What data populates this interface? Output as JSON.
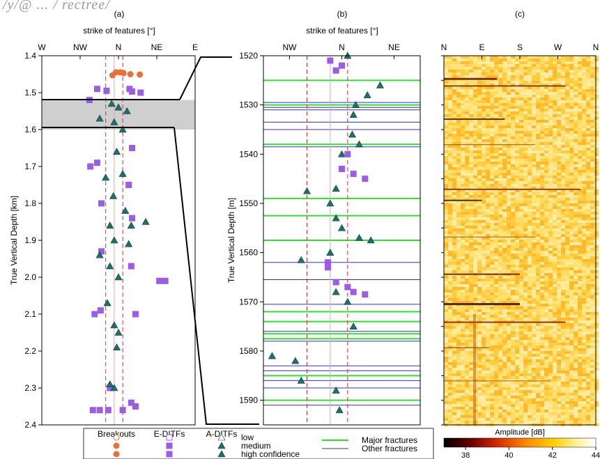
{
  "header_fragment": "/y/@ ... / rectree/",
  "chart_data": [
    {
      "panel_label": "(a)",
      "type": "scatter",
      "title": "strike of features [°]",
      "ylabel": "True Vertical Depth [km]",
      "xlim": [
        -90,
        90
      ],
      "ylim": [
        2.4,
        1.4
      ],
      "x_ticks": [
        "W",
        "NW",
        "N",
        "NE",
        "E"
      ],
      "x_tick_values": [
        -90,
        -45,
        0,
        45,
        90
      ],
      "y_ticks": [
        "1.4",
        "1.5",
        "1.6",
        "1.7",
        "1.8",
        "1.9",
        "2.0",
        "2.1",
        "2.2",
        "2.3",
        "2.4"
      ],
      "dashed_lines_x": [
        -15,
        5
      ],
      "solid_line_x": -5,
      "shaded_depth_km": [
        1.52,
        1.6
      ],
      "series": [
        {
          "name": "Breakouts",
          "marker": "circle",
          "color": "#e8713a",
          "points": [
            [
              -3,
              1.445
            ],
            [
              2,
              1.445
            ],
            [
              6,
              1.447
            ],
            [
              14,
              1.45
            ],
            [
              25,
              1.451
            ],
            [
              -7,
              1.453
            ]
          ]
        },
        {
          "name": "E-DITFs",
          "marker": "square",
          "color": "#9b5de5",
          "points": [
            [
              -25,
              1.49
            ],
            [
              -14,
              1.495
            ],
            [
              13,
              1.49
            ],
            [
              16,
              1.497
            ],
            [
              26,
              1.5
            ],
            [
              -34,
              1.52
            ],
            [
              -33,
              1.7
            ],
            [
              -25,
              1.69
            ],
            [
              16,
              1.65
            ],
            [
              12,
              1.75
            ],
            [
              -20,
              1.8
            ],
            [
              16,
              1.84
            ],
            [
              15,
              1.97
            ],
            [
              -20,
              1.93
            ],
            [
              55,
              2.01
            ],
            [
              48,
              2.01
            ],
            [
              -28,
              2.1
            ],
            [
              -21,
              2.09
            ],
            [
              20,
              2.1
            ],
            [
              -10,
              2.3
            ],
            [
              15,
              2.34
            ],
            [
              20,
              2.35
            ],
            [
              -12,
              2.36
            ],
            [
              5,
              2.36
            ],
            [
              -22,
              2.36
            ],
            [
              -30,
              2.36
            ]
          ]
        },
        {
          "name": "A-DITFs",
          "marker": "triangle",
          "color": "#1f6f6e",
          "points": [
            [
              -8,
              1.53
            ],
            [
              0,
              1.54
            ],
            [
              10,
              1.55
            ],
            [
              -22,
              1.57
            ],
            [
              -5,
              1.58
            ],
            [
              5,
              1.6
            ],
            [
              -2,
              1.66
            ],
            [
              -15,
              1.73
            ],
            [
              5,
              1.72
            ],
            [
              -6,
              1.78
            ],
            [
              8,
              1.82
            ],
            [
              -10,
              1.86
            ],
            [
              15,
              1.86
            ],
            [
              32,
              1.85
            ],
            [
              -5,
              1.9
            ],
            [
              12,
              1.91
            ],
            [
              -22,
              1.94
            ],
            [
              -10,
              1.97
            ],
            [
              0,
              2.0
            ],
            [
              -13,
              2.07
            ],
            [
              -5,
              2.13
            ],
            [
              0,
              2.15
            ],
            [
              -2,
              2.19
            ],
            [
              -10,
              2.29
            ],
            [
              -5,
              2.3
            ]
          ]
        }
      ],
      "legend": {
        "headers": [
          "Breakouts",
          "E-DITFs",
          "A-DITFs"
        ],
        "rows": [
          "low",
          "medium",
          "high confidence"
        ]
      }
    },
    {
      "panel_label": "(b)",
      "type": "scatter",
      "title": "strike of features [°]",
      "ylabel": "True Vertical Depth [m]",
      "xlim": [
        -67.5,
        67.5
      ],
      "ylim": [
        1595,
        1520
      ],
      "x_ticks": [
        "NW",
        "N",
        "NE"
      ],
      "x_tick_values": [
        -45,
        0,
        45
      ],
      "y_ticks": [
        "1520",
        "1530",
        "1540",
        "1550",
        "1560",
        "1570",
        "1580",
        "1590"
      ],
      "dashed_lines_x": [
        -30,
        5
      ],
      "solid_line_x": -10,
      "major_fractures_m": [
        1525,
        1530,
        1538,
        1549,
        1552.5,
        1557.5,
        1572,
        1574,
        1576.5,
        1577.5,
        1585,
        1590
      ],
      "other_fractures_m": [
        1529.5,
        1530.5,
        1531,
        1533.5,
        1535,
        1538.5,
        1562,
        1565.5,
        1570.5,
        1576,
        1578,
        1583,
        1584,
        1586,
        1587.5,
        1591
      ],
      "series": [
        {
          "name": "A-DITFs",
          "marker": "triangle",
          "color": "#1f6f6e",
          "points": [
            [
              5,
              1520
            ],
            [
              33,
              1526
            ],
            [
              22,
              1528
            ],
            [
              12,
              1530
            ],
            [
              10,
              1532
            ],
            [
              9,
              1536
            ],
            [
              15,
              1538
            ],
            [
              0,
              1540
            ],
            [
              -5,
              1547
            ],
            [
              -30,
              1547.5
            ],
            [
              -10,
              1550
            ],
            [
              -5,
              1553
            ],
            [
              0,
              1555
            ],
            [
              15,
              1557
            ],
            [
              25,
              1557.5
            ],
            [
              -10,
              1560
            ],
            [
              -35,
              1561.5
            ],
            [
              -5,
              1568
            ],
            [
              5,
              1570
            ],
            [
              10,
              1575
            ],
            [
              -60,
              1581
            ],
            [
              -40,
              1582
            ],
            [
              -35,
              1586
            ],
            [
              -5,
              1588
            ],
            [
              -2,
              1592
            ]
          ]
        },
        {
          "name": "E-DITFs",
          "marker": "square",
          "color": "#9b5de5",
          "points": [
            [
              -10,
              1521
            ],
            [
              0,
              1522
            ],
            [
              -5,
              1523
            ],
            [
              5,
              1540
            ],
            [
              0,
              1543
            ],
            [
              10,
              1544
            ],
            [
              20,
              1545
            ],
            [
              -12,
              1562
            ],
            [
              -5,
              1566
            ],
            [
              5,
              1567
            ],
            [
              10,
              1568
            ],
            [
              20,
              1568.5
            ],
            [
              -12,
              1563
            ]
          ]
        }
      ],
      "legend": {
        "major": "Major fractures",
        "other": "Other fractures"
      }
    },
    {
      "panel_label": "(c)",
      "type": "heatmap",
      "x_ticks": [
        "N",
        "E",
        "S",
        "W",
        "N"
      ],
      "colorbar": {
        "label": "Amplitude [dB]",
        "min": 37,
        "max": 44,
        "ticks": [
          "38",
          "40",
          "42",
          "44"
        ],
        "colors": [
          "#000000",
          "#8b0000",
          "#e03000",
          "#ff8c00",
          "#ffd700",
          "#fffacd",
          "#ffffff"
        ]
      }
    }
  ]
}
